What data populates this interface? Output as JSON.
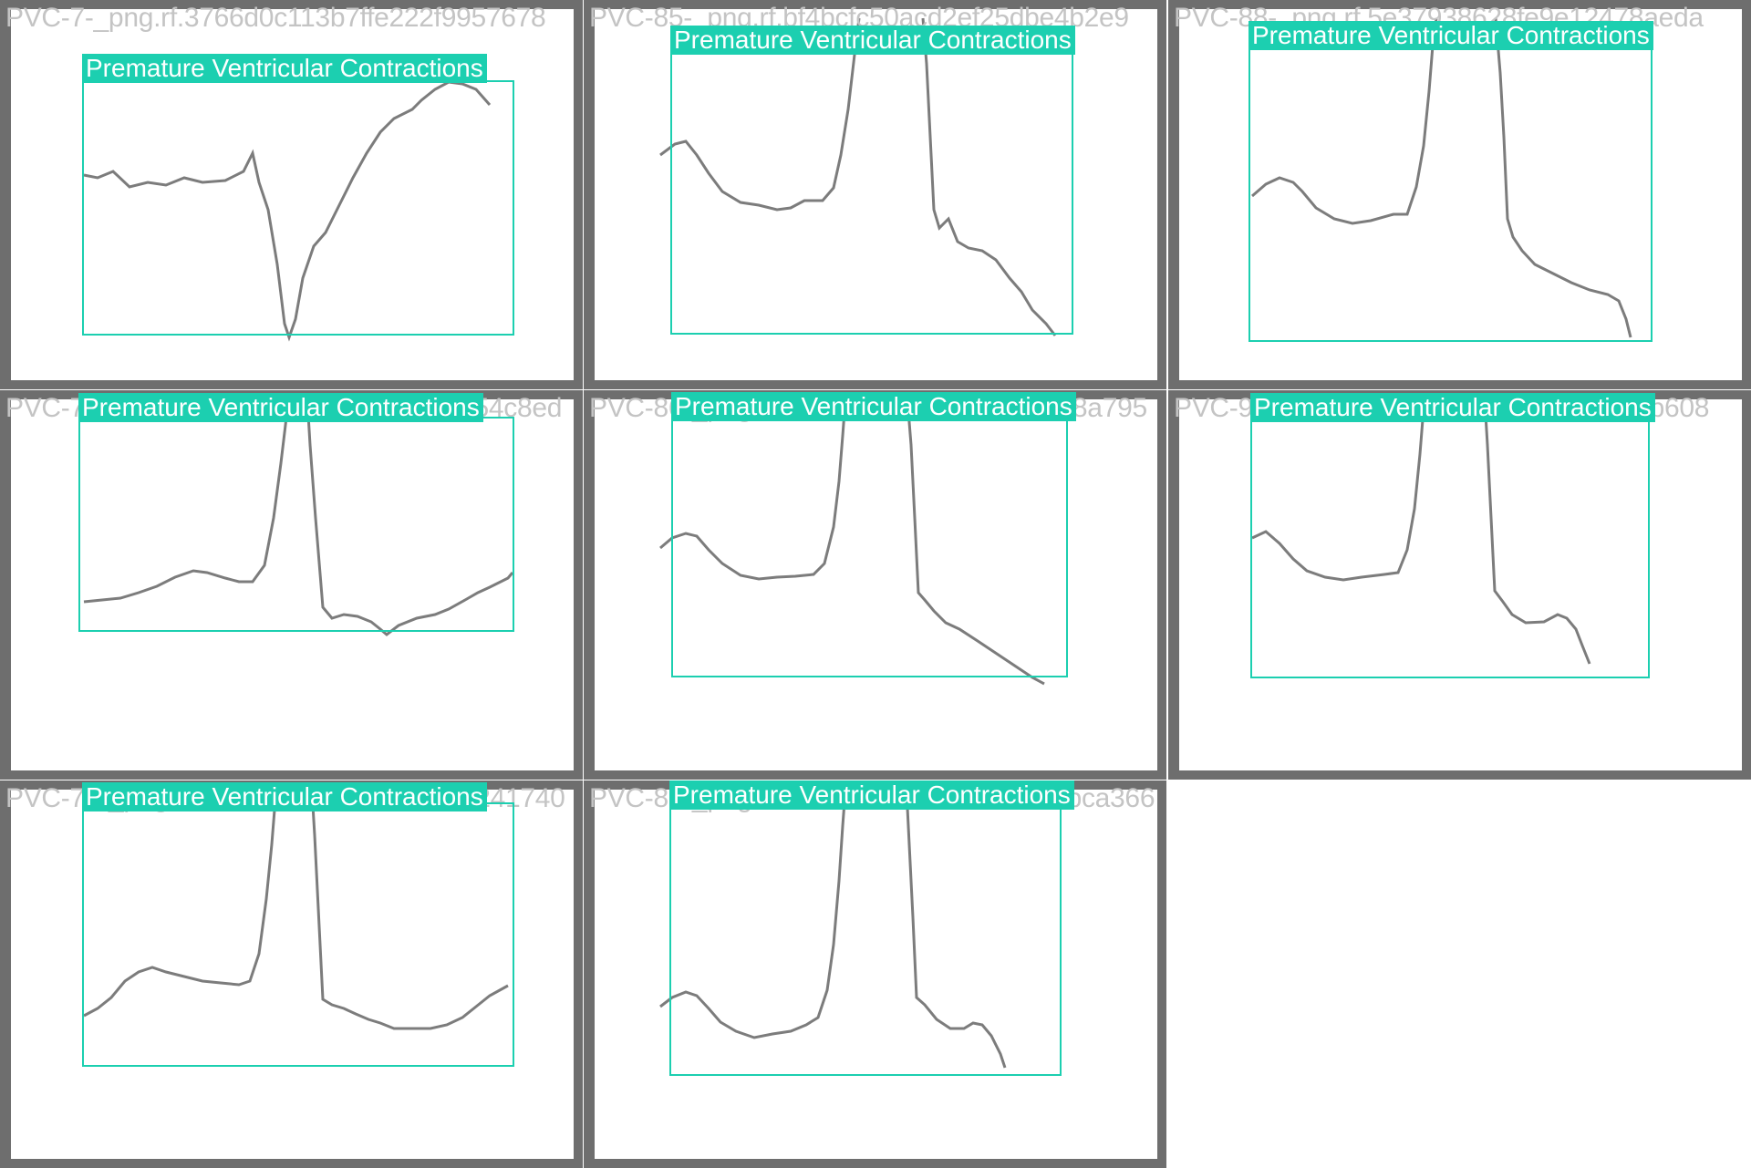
{
  "colors": {
    "frame": "#6e6e6e",
    "box": "#1ccfb0",
    "label_text": "#ffffff",
    "filename_text": "#c4c4c4",
    "trace": "#7c7c7c"
  },
  "tiles": [
    {
      "filename": "PVC-7-_png.rf.3766d0c113b7ffe222f9957678",
      "label": "Premature Ventricular Contractions"
    },
    {
      "filename": "PVC-85-_png.rf.bf4bcfc50acd2ef25dbe4b2e9",
      "label": "Premature Ventricular Contractions"
    },
    {
      "filename": "PVC-88-_png.rf.5e37938628fe9e12478aeda",
      "label": "Premature Ventricular Contractions"
    },
    {
      "filename": "PVC-71-_png.rf.ee006d67438c7d0af3354c8ed",
      "label": "Premature Ventricular Contractions"
    },
    {
      "filename": "PVC-86-_png.rf.4c6a98679f17b0a155a78a795",
      "label": "Premature Ventricular Contractions"
    },
    {
      "filename": "PVC-91-_png.rf.eeaa2aeb0f76f3ec861bb608",
      "label": "Premature Ventricular Contractions"
    },
    {
      "filename": "PVC-74-_png.rf.603947e1efd527ee090241740",
      "label": "Premature Ventricular Contractions"
    },
    {
      "filename": "PVC-87-_png.rf.0de4a94329a82231e99bca366",
      "label": "Premature Ventricular Contractions"
    }
  ]
}
